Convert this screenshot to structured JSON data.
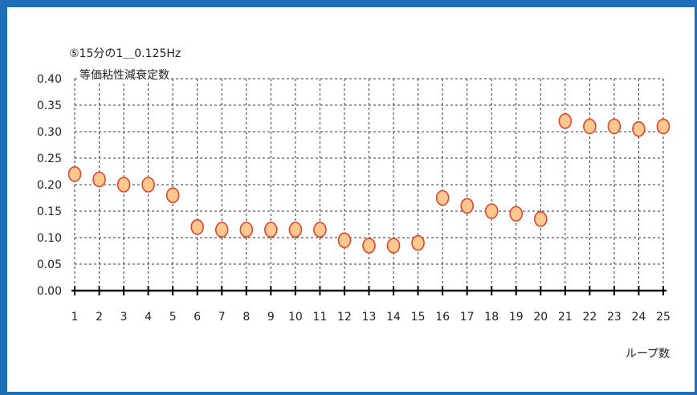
{
  "chart_data": {
    "type": "scatter",
    "title_line1": "⑤15分の1＿0.125Hz",
    "title_line2": "等価粘性減衰定数",
    "xlabel": "ループ数",
    "ylabel": "",
    "ylim": [
      0,
      0.4
    ],
    "yticks": [
      "0.00",
      "0.05",
      "0.10",
      "0.15",
      "0.20",
      "0.25",
      "0.30",
      "0.35",
      "0.40"
    ],
    "x": [
      1,
      2,
      3,
      4,
      5,
      6,
      7,
      8,
      9,
      10,
      11,
      12,
      13,
      14,
      15,
      16,
      17,
      18,
      19,
      20,
      21,
      22,
      23,
      24,
      25
    ],
    "y": [
      0.22,
      0.21,
      0.2,
      0.2,
      0.18,
      0.12,
      0.115,
      0.115,
      0.115,
      0.115,
      0.115,
      0.095,
      0.085,
      0.085,
      0.09,
      0.175,
      0.16,
      0.15,
      0.145,
      0.135,
      0.32,
      0.31,
      0.31,
      0.305,
      0.31
    ],
    "grid": true,
    "marker_fill": "#fbc98f",
    "marker_edge": "#e0452d"
  }
}
